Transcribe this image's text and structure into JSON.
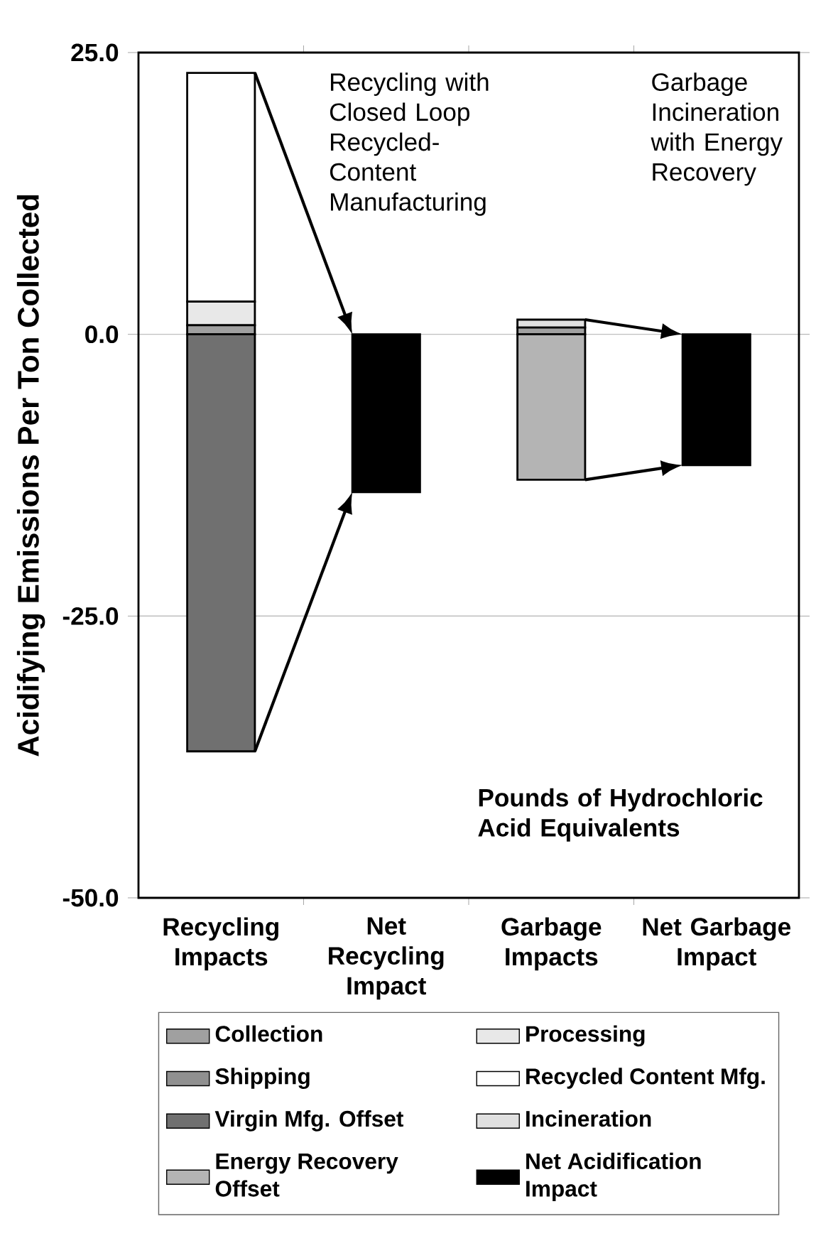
{
  "chart_data": {
    "type": "bar",
    "stacked": true,
    "ylabel": "Acidifying Emissions Per Ton Collected",
    "categories": [
      "Recycling Impacts",
      "Net Recycling Impact",
      "Garbage Impacts",
      "Net Garbage Impact"
    ],
    "series": [
      {
        "name": "Collection",
        "color": "#a0a0a0",
        "values": [
          0.8,
          null,
          0.6,
          null
        ]
      },
      {
        "name": "Processing",
        "color": "#e8e8e8",
        "values": [
          2.1,
          null,
          null,
          null
        ]
      },
      {
        "name": "Shipping",
        "color": "#909090",
        "values": [
          null,
          null,
          null,
          null
        ]
      },
      {
        "name": "Recycled Content Mfg.",
        "color": "#ffffff",
        "values": [
          20.3,
          null,
          null,
          null
        ]
      },
      {
        "name": "Virgin Mfg. Offset",
        "color": "#707070",
        "values": [
          -37.0,
          null,
          null,
          null
        ]
      },
      {
        "name": "Incineration",
        "color": "#e0e0e0",
        "values": [
          null,
          null,
          0.7,
          null
        ]
      },
      {
        "name": "Energy Recovery Offset",
        "color": "#b4b4b4",
        "values": [
          null,
          null,
          -12.9,
          null
        ]
      },
      {
        "name": "Net Acidification Impact",
        "color": "#000000",
        "values": [
          null,
          -14.0,
          null,
          -11.6
        ]
      }
    ],
    "ylim": [
      -50,
      25
    ],
    "yticks": [
      {
        "value": 25,
        "label": "25.0"
      },
      {
        "value": 0,
        "label": "0.0"
      },
      {
        "value": -25,
        "label": "-25.0"
      },
      {
        "value": -50,
        "label": "-50.0"
      }
    ],
    "grid": "y",
    "legend": "bottom",
    "annotations": [
      "Recycling with Closed Loop Recycled-Content Manufacturing",
      "Garbage Incineration with Energy Recovery",
      "Pounds of Hydrochloric Acid Equivalents"
    ]
  }
}
